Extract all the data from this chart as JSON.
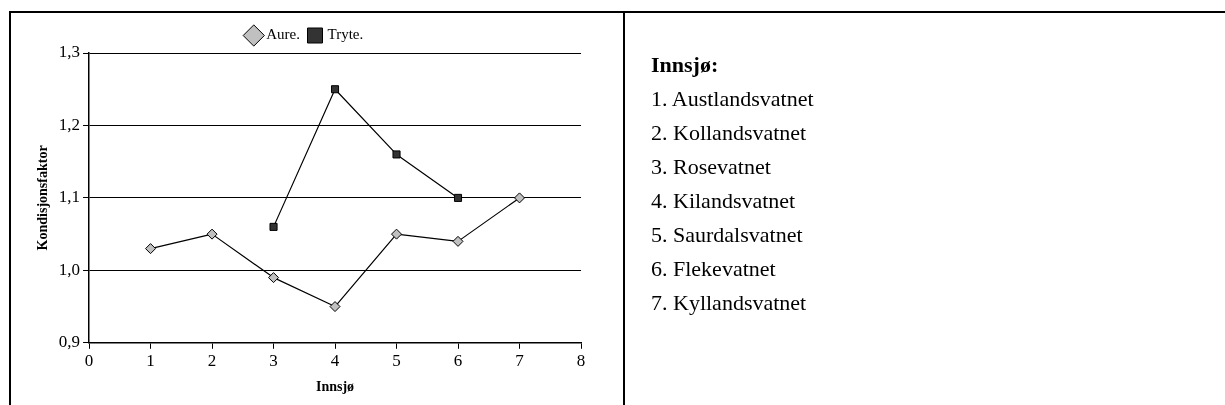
{
  "chart_data": {
    "type": "line",
    "xlabel": "Innsjø",
    "ylabel": "Kondisjonsfaktor",
    "x": [
      1,
      2,
      3,
      4,
      5,
      6,
      7
    ],
    "series": [
      {
        "name": "Aure.",
        "color": "#c0c0c0",
        "marker": "diamond",
        "values": [
          1.03,
          1.05,
          0.99,
          0.95,
          1.05,
          1.04,
          1.1
        ]
      },
      {
        "name": "Tryte.",
        "color": "#333333",
        "marker": "square",
        "x": [
          3,
          4,
          5,
          6
        ],
        "values": [
          1.06,
          1.25,
          1.16,
          1.1
        ]
      }
    ],
    "xlim": [
      0,
      8
    ],
    "xticks": [
      0,
      1,
      2,
      3,
      4,
      5,
      6,
      7,
      8
    ],
    "ylim": [
      0.9,
      1.3
    ],
    "yticks": [
      {
        "value": 0.9,
        "label": "0,9"
      },
      {
        "value": 1.0,
        "label": "1,0"
      },
      {
        "value": 1.1,
        "label": "1,1"
      },
      {
        "value": 1.2,
        "label": "1,2"
      },
      {
        "value": 1.3,
        "label": "1,3"
      }
    ],
    "grid": "y",
    "legend": "top",
    "line_style": "solid",
    "annotations": [
      "Innsjø:",
      "1. Austlandsvatnet",
      "2. Kollandsvatnet",
      "3. Rosevatnet",
      "4. Kilandsvatnet",
      "5. Saurdalsvatnet",
      "6. Flekevatnet",
      "7. Kyllandsvatnet"
    ]
  }
}
